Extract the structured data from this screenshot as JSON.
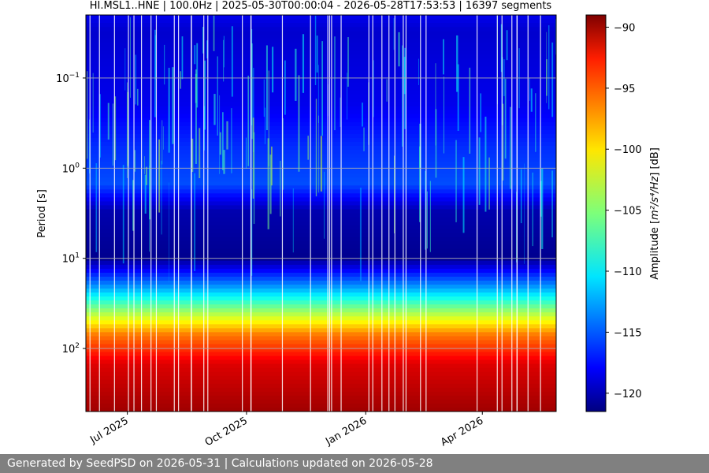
{
  "chart_data": {
    "type": "heatmap",
    "title": "HI.MSL1..HNE | 100.0Hz | 2025-05-30T00:00:04 - 2026-05-28T17:53:53 | 16397 segments",
    "ylabel": "Period [s]",
    "y_scale": "log",
    "y_range": [
      0.02,
      500
    ],
    "y_inverted": true,
    "y_ticks": [
      {
        "value": 0.1,
        "base": "10",
        "exp": "−1"
      },
      {
        "value": 1,
        "base": "10",
        "exp": "0"
      },
      {
        "value": 10,
        "base": "10",
        "exp": "1"
      },
      {
        "value": 100,
        "base": "10",
        "exp": "2"
      }
    ],
    "x_range": [
      "2025-05-30",
      "2026-05-28"
    ],
    "x_ticks": [
      {
        "date": "2025-07-01",
        "label": "Jul 2025"
      },
      {
        "date": "2025-10-01",
        "label": "Oct 2025"
      },
      {
        "date": "2026-01-01",
        "label": "Jan 2026"
      },
      {
        "date": "2026-04-01",
        "label": "Apr 2026"
      }
    ],
    "grid": true,
    "colormap": "jet",
    "colorbar": {
      "label_pre": "Amplitude [",
      "label_math": "m²/s⁴/Hz",
      "label_post": "] [dB]",
      "range": [
        -121.5,
        -89
      ],
      "ticks": [
        -90,
        -95,
        -100,
        -105,
        -110,
        -115,
        -120
      ]
    },
    "amplitude_profile": [
      {
        "period": 0.02,
        "db": -118
      },
      {
        "period": 0.03,
        "db": -119
      },
      {
        "period": 0.2,
        "db": -118
      },
      {
        "period": 0.6,
        "db": -116
      },
      {
        "period": 1.5,
        "db": -115
      },
      {
        "period": 3,
        "db": -120
      },
      {
        "period": 10,
        "db": -121
      },
      {
        "period": 20,
        "db": -113
      },
      {
        "period": 40,
        "db": -104
      },
      {
        "period": 70,
        "db": -97
      },
      {
        "period": 150,
        "db": -92
      },
      {
        "period": 500,
        "db": -90
      }
    ]
  },
  "footer": {
    "text": "Generated by SeedPSD on 2026-05-31 | Calculations updated on 2026-05-28"
  }
}
